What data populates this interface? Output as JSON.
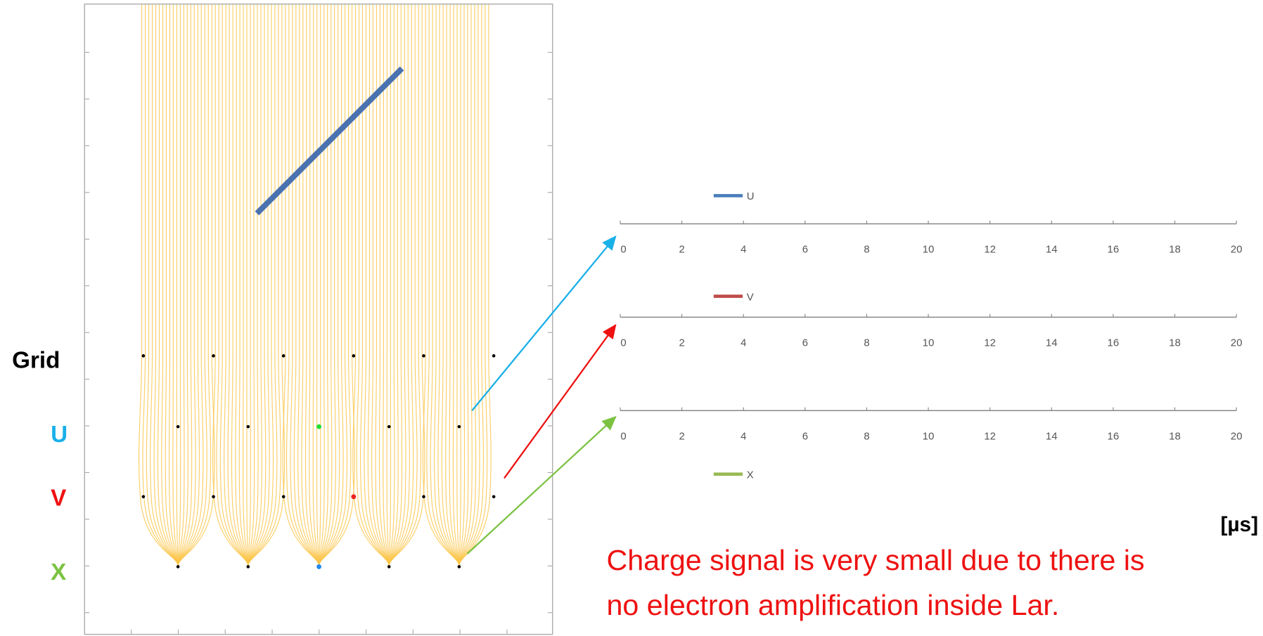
{
  "labels": {
    "grid": "Grid",
    "u": "U",
    "v": "V",
    "x": "X"
  },
  "plots": [
    {
      "legend": "U",
      "color": "#4a7ebb",
      "xlim": [
        0,
        20
      ],
      "xticks": [
        0,
        2,
        4,
        6,
        8,
        10,
        12,
        14,
        16,
        18,
        20
      ]
    },
    {
      "legend": "V",
      "color": "#be4b48",
      "xlim": [
        0,
        20
      ],
      "xticks": [
        0,
        2,
        4,
        6,
        8,
        10,
        12,
        14,
        16,
        18,
        20
      ]
    },
    {
      "legend": "X",
      "color": "#98b954",
      "xlim": [
        0,
        20
      ],
      "xticks": [
        0,
        2,
        4,
        6,
        8,
        10,
        12,
        14,
        16,
        18,
        20
      ]
    }
  ],
  "unit": "[µs]",
  "note": [
    "Charge signal is very small due to there is",
    "no electron amplification inside Lar."
  ]
}
